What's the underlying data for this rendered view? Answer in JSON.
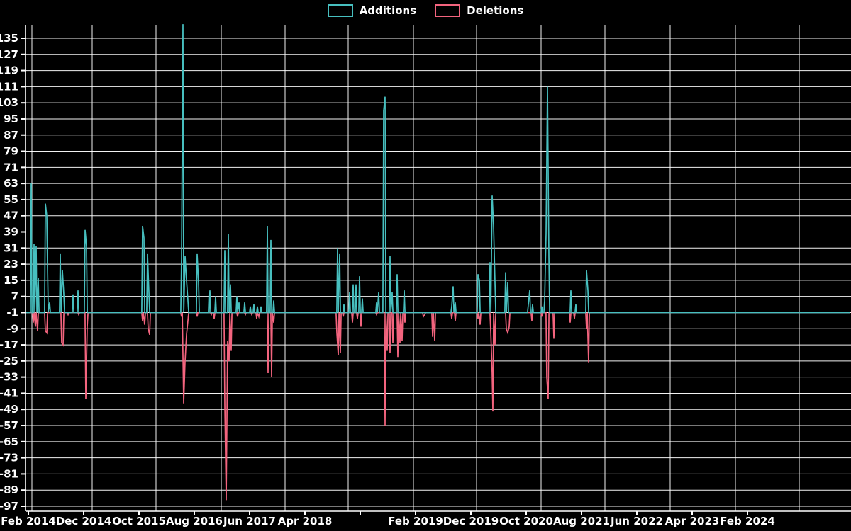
{
  "chart_data": {
    "type": "line",
    "title": "",
    "background": "#000000",
    "grid": true,
    "legend_position": "top-center",
    "legend": [
      {
        "label": "Additions",
        "color": "#47bfbf"
      },
      {
        "label": "Deletions",
        "color": "#f3647e"
      }
    ],
    "x_axis": {
      "tick_labels": [
        "Feb 2014",
        "Dec 2014",
        "Oct 2015",
        "Aug 2016",
        "Jun 2017",
        "Apr 2018",
        "Feb 2019",
        "Dec 2019",
        "Oct 2020",
        "Aug 2021",
        "Jun 2022",
        "Apr 2023",
        "Feb 2024"
      ]
    },
    "y_axis": {
      "tick_labels": [
        135,
        127,
        119,
        111,
        103,
        95,
        87,
        79,
        71,
        63,
        55,
        47,
        39,
        31,
        23,
        15,
        7,
        -1,
        -9,
        -17,
        -25,
        -33,
        -41,
        -49,
        -57,
        -65,
        -73,
        -81,
        -89,
        -97
      ],
      "ylim": [
        -99.5,
        141.5
      ]
    },
    "baseline_value": -1,
    "note": "Weekly additions/deletions line chart; both series rest at -1 between activity spikes. Tallest additions spike (mid 2016) is clipped at the plot top (~142). Flat at -1 from late 2021 through Feb 2024.",
    "point_format": [
      "x_px",
      "value",
      "date_approx"
    ],
    "series": [
      {
        "name": "Additions",
        "color": "#47bfbf",
        "points": [
          [
            44,
            63,
            "2014-02"
          ],
          [
            48,
            33,
            "2014-03"
          ],
          [
            51,
            32,
            "2014-03"
          ],
          [
            54,
            16,
            "2014-04"
          ],
          [
            64,
            53,
            "2014-05"
          ],
          [
            66,
            47,
            "2014-05"
          ],
          [
            67,
            22,
            "2014-05"
          ],
          [
            70,
            4,
            "2014-06"
          ],
          [
            85,
            28,
            "2014-08"
          ],
          [
            88,
            20,
            "2014-08"
          ],
          [
            90,
            8,
            "2014-08"
          ],
          [
            103,
            8,
            "2014-10"
          ],
          [
            110,
            10,
            "2014-11"
          ],
          [
            120,
            40,
            "2014-12"
          ],
          [
            122,
            32,
            "2015-01"
          ],
          [
            201,
            42,
            "2015-10"
          ],
          [
            203,
            36,
            "2015-11"
          ],
          [
            208,
            28,
            "2015-12"
          ],
          [
            210,
            9,
            "2015-12"
          ],
          [
            256,
            26,
            "2016-06"
          ],
          [
            258,
            142,
            "2016-06"
          ],
          [
            261,
            27,
            "2016-06"
          ],
          [
            263,
            15,
            "2016-07"
          ],
          [
            265,
            5,
            "2016-07"
          ],
          [
            278,
            28,
            "2016-08"
          ],
          [
            280,
            14,
            "2016-09"
          ],
          [
            296,
            10,
            "2016-11"
          ],
          [
            304,
            7,
            "2016-12"
          ],
          [
            317,
            30,
            "2017-01"
          ],
          [
            322,
            38,
            "2017-02"
          ],
          [
            325,
            13,
            "2017-02"
          ],
          [
            334,
            7,
            "2017-04"
          ],
          [
            337,
            4,
            "2017-04"
          ],
          [
            345,
            4,
            "2017-05"
          ],
          [
            353,
            2,
            "2017-06"
          ],
          [
            358,
            3,
            "2017-07"
          ],
          [
            363,
            2,
            "2017-07"
          ],
          [
            368,
            2,
            "2017-08"
          ],
          [
            377,
            42,
            "2017-09"
          ],
          [
            382,
            35,
            "2017-10"
          ],
          [
            386,
            5,
            "2017-10"
          ],
          [
            476,
            31,
            "2018-07"
          ],
          [
            479,
            28,
            "2018-07"
          ],
          [
            485,
            3,
            "2018-08"
          ],
          [
            493,
            9,
            "2018-08"
          ],
          [
            498,
            13,
            "2018-08"
          ],
          [
            502,
            13,
            "2018-09"
          ],
          [
            507,
            17,
            "2018-09"
          ],
          [
            511,
            6,
            "2018-10"
          ],
          [
            531,
            4,
            "2018-11"
          ],
          [
            534,
            9,
            "2018-11"
          ],
          [
            541,
            99,
            "2018-11"
          ],
          [
            543,
            106,
            "2018-11"
          ],
          [
            550,
            27,
            "2018-12"
          ],
          [
            553,
            9,
            "2018-12"
          ],
          [
            560,
            18,
            "2019-01"
          ],
          [
            570,
            10,
            "2019-01"
          ],
          [
            637,
            2,
            "2019-08"
          ],
          [
            639,
            12,
            "2019-09"
          ],
          [
            642,
            4,
            "2019-09"
          ],
          [
            674,
            18,
            "2020-01"
          ],
          [
            676,
            15,
            "2020-01"
          ],
          [
            691,
            24,
            "2020-03"
          ],
          [
            694,
            57,
            "2020-04"
          ],
          [
            696,
            42,
            "2020-04"
          ],
          [
            698,
            14,
            "2020-04"
          ],
          [
            713,
            19,
            "2020-06"
          ],
          [
            716,
            14,
            "2020-07"
          ],
          [
            745,
            3,
            "2020-10"
          ],
          [
            747,
            10,
            "2020-11"
          ],
          [
            751,
            3,
            "2020-11"
          ],
          [
            764,
            2,
            "2021-01"
          ],
          [
            768,
            5,
            "2021-01"
          ],
          [
            770,
            38,
            "2021-02"
          ],
          [
            772,
            111,
            "2021-02"
          ],
          [
            774,
            27,
            "2021-02"
          ],
          [
            805,
            10,
            "2021-06"
          ],
          [
            812,
            3,
            "2021-07"
          ],
          [
            827,
            20,
            "2021-09"
          ],
          [
            829,
            10,
            "2021-09"
          ]
        ]
      },
      {
        "name": "Deletions",
        "color": "#f3647e",
        "points": [
          [
            47,
            -6,
            "2014-03"
          ],
          [
            50,
            -8,
            "2014-03"
          ],
          [
            53,
            -10,
            "2014-04"
          ],
          [
            64,
            -10,
            "2014-05"
          ],
          [
            66,
            -11,
            "2014-05"
          ],
          [
            87,
            -16,
            "2014-08"
          ],
          [
            89,
            -17,
            "2014-08"
          ],
          [
            96,
            -2,
            "2014-09"
          ],
          [
            111,
            -2,
            "2014-11"
          ],
          [
            121,
            -44,
            "2014-12"
          ],
          [
            123,
            -8,
            "2015-01"
          ],
          [
            201,
            -5,
            "2015-10"
          ],
          [
            204,
            -7,
            "2015-11"
          ],
          [
            209,
            -9,
            "2015-12"
          ],
          [
            211,
            -12,
            "2015-12"
          ],
          [
            256,
            -3,
            "2016-06"
          ],
          [
            259,
            -46,
            "2016-06"
          ],
          [
            261,
            -25,
            "2016-06"
          ],
          [
            263,
            -12,
            "2016-07"
          ],
          [
            265,
            -5,
            "2016-07"
          ],
          [
            278,
            -3,
            "2016-08"
          ],
          [
            298,
            -2,
            "2016-11"
          ],
          [
            302,
            -4,
            "2016-12"
          ],
          [
            317,
            -47,
            "2017-01"
          ],
          [
            319,
            -94,
            "2017-01"
          ],
          [
            321,
            -15,
            "2017-02"
          ],
          [
            323,
            -25,
            "2017-02"
          ],
          [
            326,
            -20,
            "2017-03"
          ],
          [
            335,
            -3,
            "2017-04"
          ],
          [
            346,
            -2,
            "2017-05"
          ],
          [
            355,
            -2,
            "2017-06"
          ],
          [
            362,
            -4,
            "2017-07"
          ],
          [
            365,
            -3,
            "2017-08"
          ],
          [
            378,
            -31,
            "2017-09"
          ],
          [
            383,
            -33,
            "2017-10"
          ],
          [
            386,
            -6,
            "2017-10"
          ],
          [
            475,
            -11,
            "2018-07"
          ],
          [
            477,
            -22,
            "2018-07"
          ],
          [
            480,
            -21,
            "2018-07"
          ],
          [
            484,
            -3,
            "2018-08"
          ],
          [
            497,
            -6,
            "2018-08"
          ],
          [
            504,
            -4,
            "2018-09"
          ],
          [
            509,
            -8,
            "2018-09"
          ],
          [
            531,
            -2,
            "2018-11"
          ],
          [
            543,
            -57,
            "2018-11"
          ],
          [
            546,
            -20,
            "2018-12"
          ],
          [
            550,
            -21,
            "2018-12"
          ],
          [
            554,
            -16,
            "2018-12"
          ],
          [
            561,
            -23,
            "2019-01"
          ],
          [
            564,
            -16,
            "2019-01"
          ],
          [
            567,
            -15,
            "2019-01"
          ],
          [
            571,
            -6,
            "2019-01"
          ],
          [
            597,
            -3,
            "2019-03"
          ],
          [
            599,
            -2,
            "2019-03"
          ],
          [
            610,
            -13,
            "2019-05"
          ],
          [
            613,
            -15,
            "2019-05"
          ],
          [
            637,
            -4,
            "2019-08"
          ],
          [
            642,
            -5,
            "2019-09"
          ],
          [
            674,
            -4,
            "2020-01"
          ],
          [
            677,
            -7,
            "2020-01"
          ],
          [
            692,
            -10,
            "2020-03"
          ],
          [
            694,
            -31,
            "2020-04"
          ],
          [
            695,
            -50,
            "2020-04"
          ],
          [
            698,
            -17,
            "2020-04"
          ],
          [
            714,
            -9,
            "2020-06"
          ],
          [
            716,
            -11,
            "2020-07"
          ],
          [
            718,
            -8,
            "2020-07"
          ],
          [
            750,
            -5,
            "2020-11"
          ],
          [
            764,
            -3,
            "2021-01"
          ],
          [
            771,
            -33,
            "2021-02"
          ],
          [
            773,
            -44,
            "2021-02"
          ],
          [
            781,
            -14,
            "2021-03"
          ],
          [
            804,
            -6,
            "2021-06"
          ],
          [
            810,
            -4,
            "2021-07"
          ],
          [
            827,
            -9,
            "2021-09"
          ],
          [
            830,
            -26,
            "2021-09"
          ]
        ]
      }
    ]
  }
}
